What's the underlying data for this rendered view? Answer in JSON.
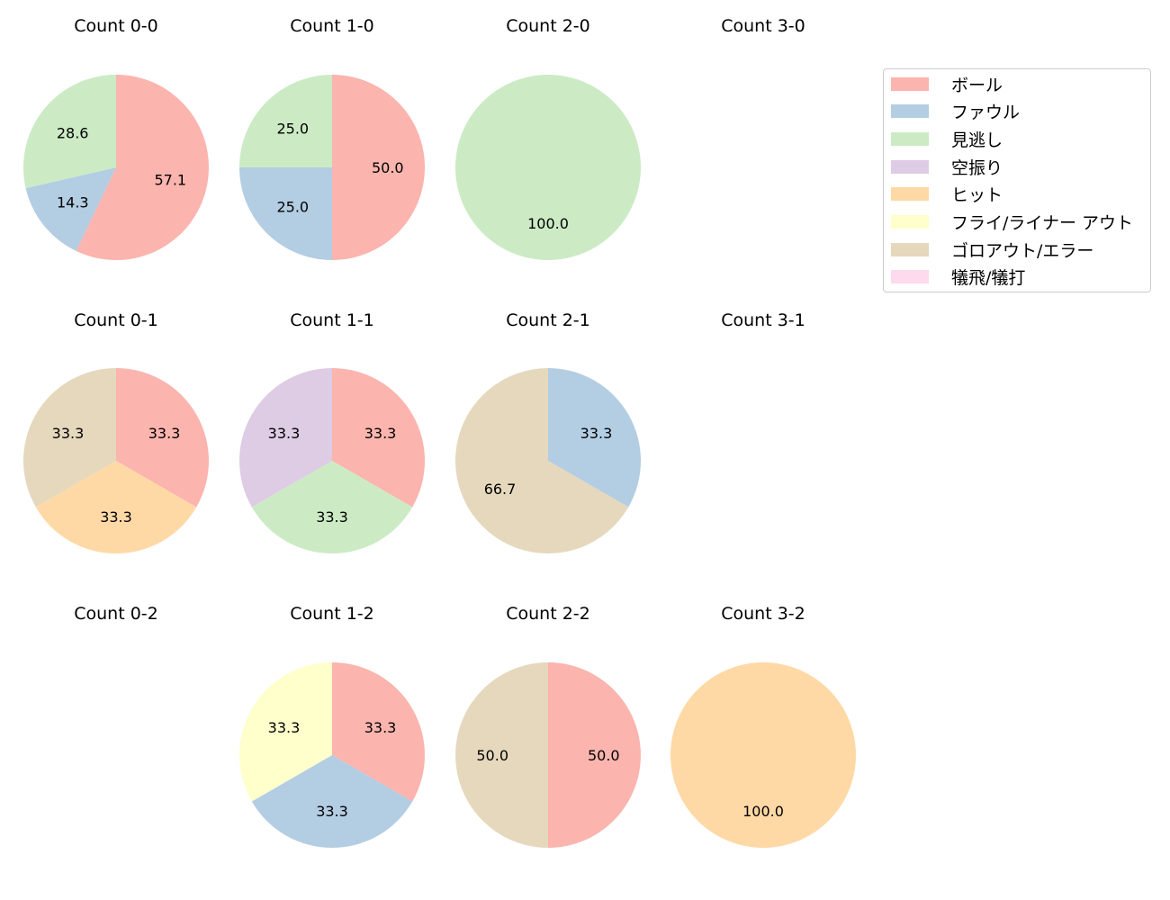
{
  "chart_data": {
    "type": "pie",
    "layout": {
      "rows": 3,
      "cols": 4,
      "legend_position": "upper right"
    },
    "legend": [
      {
        "label": "ボール",
        "color": "#fbb4ae"
      },
      {
        "label": "ファウル",
        "color": "#b3cde3"
      },
      {
        "label": "見逃し",
        "color": "#ccebc5"
      },
      {
        "label": "空振り",
        "color": "#decbe4"
      },
      {
        "label": "ヒット",
        "color": "#fed9a6"
      },
      {
        "label": "フライ/ライナー アウト",
        "color": "#ffffcc"
      },
      {
        "label": "ゴロアウト/エラー",
        "color": "#e5d8bd"
      },
      {
        "label": "犠飛/犠打",
        "color": "#fddaec"
      }
    ],
    "charts": [
      {
        "title": "Count 0-0",
        "row": 0,
        "col": 0,
        "slices": [
          {
            "category": "ボール",
            "value": 57.1
          },
          {
            "category": "ファウル",
            "value": 14.3
          },
          {
            "category": "見逃し",
            "value": 28.6
          }
        ]
      },
      {
        "title": "Count 1-0",
        "row": 0,
        "col": 1,
        "slices": [
          {
            "category": "ボール",
            "value": 50.0
          },
          {
            "category": "ファウル",
            "value": 25.0
          },
          {
            "category": "見逃し",
            "value": 25.0
          }
        ]
      },
      {
        "title": "Count 2-0",
        "row": 0,
        "col": 2,
        "slices": [
          {
            "category": "見逃し",
            "value": 100.0
          }
        ]
      },
      {
        "title": "Count 3-0",
        "row": 0,
        "col": 3,
        "slices": []
      },
      {
        "title": "Count 0-1",
        "row": 1,
        "col": 0,
        "slices": [
          {
            "category": "ボール",
            "value": 33.3
          },
          {
            "category": "ヒット",
            "value": 33.3
          },
          {
            "category": "ゴロアウト/エラー",
            "value": 33.3
          }
        ]
      },
      {
        "title": "Count 1-1",
        "row": 1,
        "col": 1,
        "slices": [
          {
            "category": "ボール",
            "value": 33.3
          },
          {
            "category": "見逃し",
            "value": 33.3
          },
          {
            "category": "空振り",
            "value": 33.3
          }
        ]
      },
      {
        "title": "Count 2-1",
        "row": 1,
        "col": 2,
        "slices": [
          {
            "category": "ファウル",
            "value": 33.3
          },
          {
            "category": "ゴロアウト/エラー",
            "value": 66.7
          }
        ]
      },
      {
        "title": "Count 3-1",
        "row": 1,
        "col": 3,
        "slices": []
      },
      {
        "title": "Count 0-2",
        "row": 2,
        "col": 0,
        "slices": []
      },
      {
        "title": "Count 1-2",
        "row": 2,
        "col": 1,
        "slices": [
          {
            "category": "ボール",
            "value": 33.3
          },
          {
            "category": "ファウル",
            "value": 33.3
          },
          {
            "category": "フライ/ライナー アウト",
            "value": 33.3
          }
        ]
      },
      {
        "title": "Count 2-2",
        "row": 2,
        "col": 2,
        "slices": [
          {
            "category": "ボール",
            "value": 50.0
          },
          {
            "category": "ゴロアウト/エラー",
            "value": 50.0
          }
        ]
      },
      {
        "title": "Count 3-2",
        "row": 2,
        "col": 3,
        "slices": [
          {
            "category": "ヒット",
            "value": 100.0
          }
        ]
      }
    ]
  }
}
